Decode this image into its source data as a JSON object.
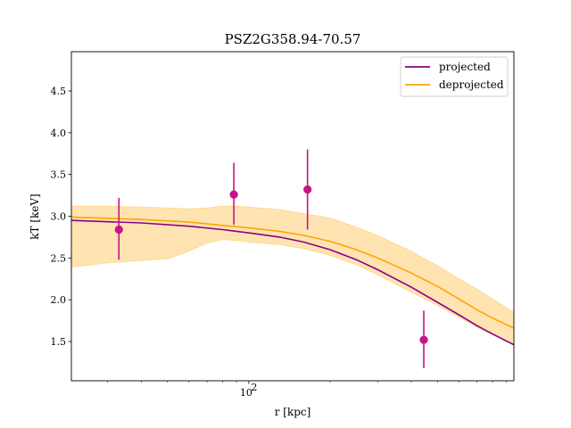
{
  "chart_data": {
    "type": "line",
    "title": "PSZ2G358.94-70.57",
    "xlabel": "r [kpc]",
    "ylabel": "kT [keV]",
    "xscale": "log",
    "xlim": [
      22,
      960
    ],
    "ylim": [
      1.03,
      4.97
    ],
    "xticks": [
      {
        "value": 100,
        "label": "10",
        "exponent": "2"
      }
    ],
    "yticks": [
      {
        "value": 1.5,
        "label": "1.5"
      },
      {
        "value": 2.0,
        "label": "2.0"
      },
      {
        "value": 2.5,
        "label": "2.5"
      },
      {
        "value": 3.0,
        "label": "3.0"
      },
      {
        "value": 3.5,
        "label": "3.5"
      },
      {
        "value": 4.0,
        "label": "4.0"
      },
      {
        "value": 4.5,
        "label": "4.5"
      }
    ],
    "legend": {
      "position": "top-right",
      "entries": [
        {
          "label": "projected",
          "color": "#8b008b"
        },
        {
          "label": "deprojected",
          "color": "#ffa500"
        }
      ]
    },
    "series": [
      {
        "name": "projected",
        "color": "#8b008b",
        "x": [
          22,
          40,
          60,
          80,
          100,
          130,
          160,
          200,
          250,
          300,
          400,
          500,
          600,
          700,
          800,
          960
        ],
        "y": [
          2.95,
          2.92,
          2.88,
          2.84,
          2.8,
          2.75,
          2.69,
          2.6,
          2.48,
          2.36,
          2.15,
          1.97,
          1.82,
          1.69,
          1.59,
          1.46
        ]
      },
      {
        "name": "deprojected",
        "color": "#ffa500",
        "x": [
          22,
          40,
          60,
          80,
          100,
          130,
          160,
          200,
          250,
          300,
          400,
          500,
          600,
          700,
          800,
          960
        ],
        "y": [
          2.99,
          2.96,
          2.93,
          2.89,
          2.86,
          2.82,
          2.77,
          2.7,
          2.6,
          2.5,
          2.32,
          2.16,
          2.01,
          1.88,
          1.78,
          1.66
        ]
      }
    ],
    "band": {
      "color": "#ffa500",
      "opacity": 0.3,
      "x": [
        22,
        30,
        40,
        50,
        60,
        70,
        80,
        90,
        100,
        130,
        160,
        200,
        250,
        300,
        400,
        500,
        600,
        700,
        800,
        960
      ],
      "upper": [
        3.12,
        3.12,
        3.11,
        3.1,
        3.09,
        3.1,
        3.12,
        3.12,
        3.11,
        3.08,
        3.03,
        2.98,
        2.87,
        2.77,
        2.58,
        2.41,
        2.25,
        2.13,
        2.01,
        1.85
      ],
      "lower": [
        2.39,
        2.44,
        2.47,
        2.49,
        2.58,
        2.68,
        2.72,
        2.71,
        2.69,
        2.66,
        2.61,
        2.53,
        2.42,
        2.3,
        2.09,
        1.93,
        1.79,
        1.67,
        1.58,
        1.47
      ]
    },
    "points": {
      "color": "#c71585",
      "data": [
        {
          "x": 33,
          "y": 2.84,
          "err_low": 0.36,
          "err_high": 0.38
        },
        {
          "x": 88,
          "y": 3.26,
          "err_low": 0.36,
          "err_high": 0.38
        },
        {
          "x": 165,
          "y": 3.32,
          "err_low": 0.48,
          "err_high": 0.48
        },
        {
          "x": 445,
          "y": 1.52,
          "err_low": 0.34,
          "err_high": 0.35
        }
      ]
    }
  }
}
